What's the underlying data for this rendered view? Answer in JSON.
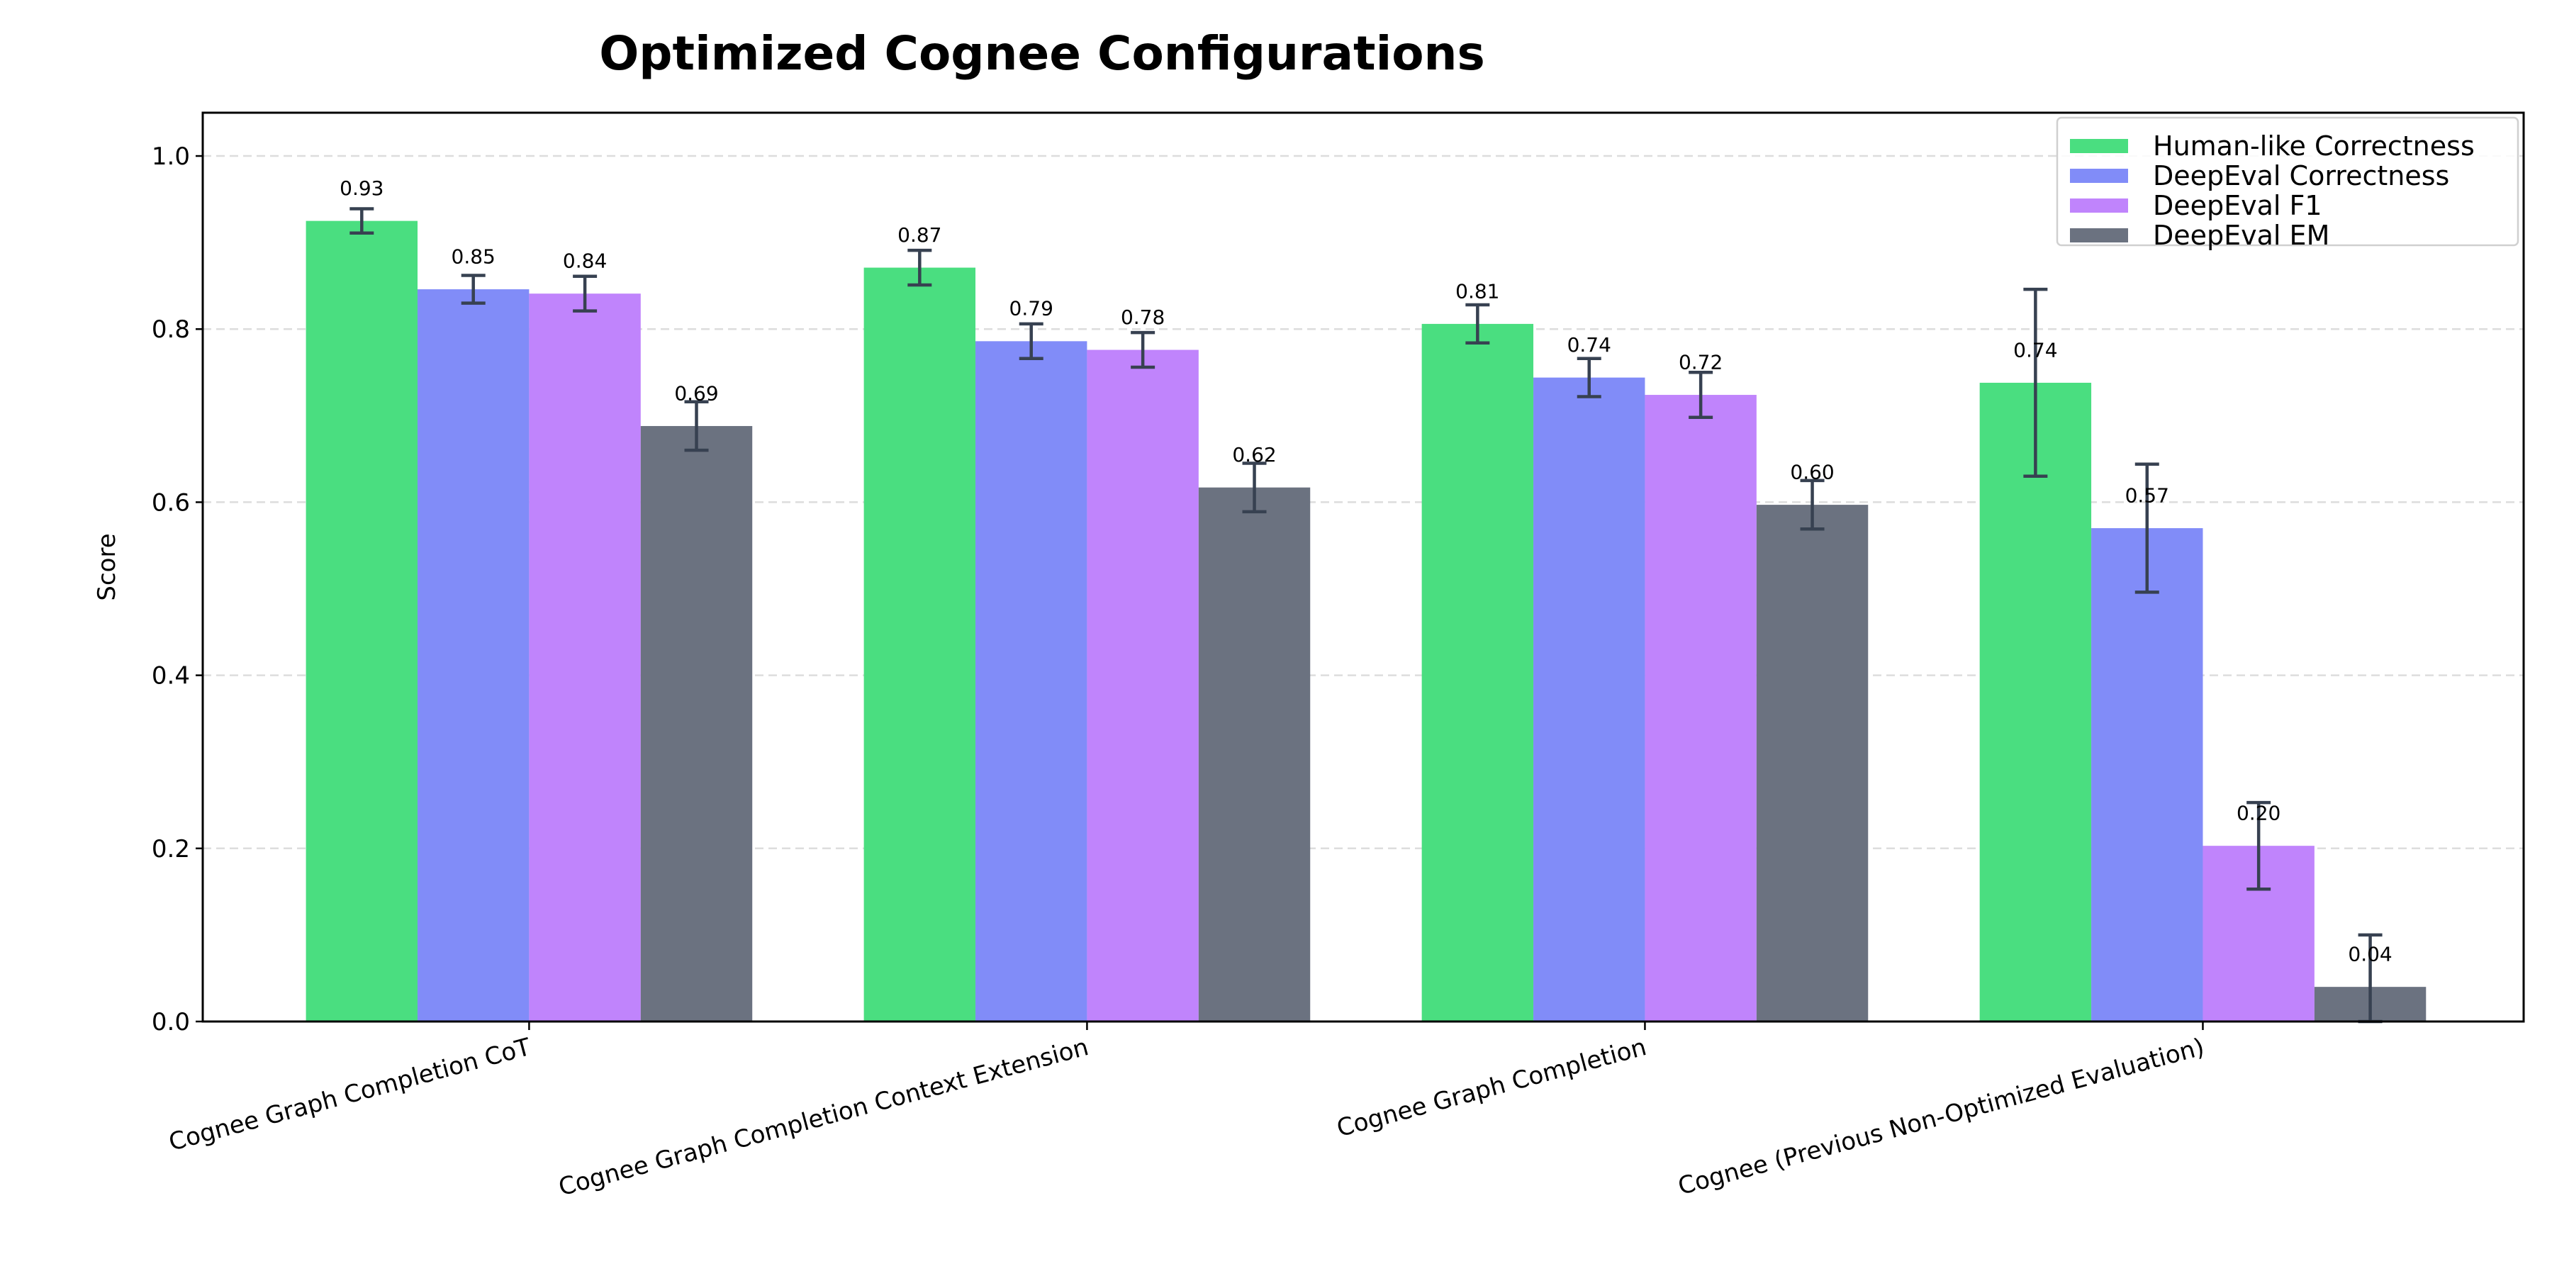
{
  "chart_data": {
    "type": "bar",
    "title": "Optimized Cognee Configurations",
    "xlabel": "",
    "ylabel": "Score",
    "ylim": [
      0,
      1.05
    ],
    "yticks": [
      "0.0",
      "0.2",
      "0.4",
      "0.6",
      "0.8",
      "1.0"
    ],
    "grid": "y-dashed",
    "legend_position": "top-right",
    "categories": [
      "Cognee Graph Completion CoT",
      "Cognee Graph Completion Context Extension",
      "Cognee Graph Completion",
      "Cognee (Previous Non-Optimized Evaluation)"
    ],
    "series": [
      {
        "name": "Human-like Correctness",
        "color": "#4ade80",
        "values": [
          0.925,
          0.871,
          0.806,
          0.738
        ],
        "errors": [
          0.014,
          0.02,
          0.022,
          0.108
        ],
        "labels": [
          "0.93",
          "0.87",
          "0.81",
          "0.74"
        ]
      },
      {
        "name": "DeepEval Correctness",
        "color": "#818cf8",
        "values": [
          0.846,
          0.786,
          0.744,
          0.57
        ],
        "errors": [
          0.016,
          0.02,
          0.022,
          0.074
        ],
        "labels": [
          "0.85",
          "0.79",
          "0.74",
          "0.57"
        ]
      },
      {
        "name": "DeepEval F1",
        "color": "#c084fc",
        "values": [
          0.841,
          0.776,
          0.724,
          0.203
        ],
        "errors": [
          0.02,
          0.02,
          0.026,
          0.05
        ],
        "labels": [
          "0.84",
          "0.78",
          "0.72",
          "0.20"
        ]
      },
      {
        "name": "DeepEval EM",
        "color": "#6b7280",
        "values": [
          0.688,
          0.617,
          0.597,
          0.04
        ],
        "errors": [
          0.028,
          0.028,
          0.028,
          0.06
        ],
        "labels": [
          "0.69",
          "0.62",
          "0.60",
          "0.04"
        ]
      }
    ],
    "error_bar_color": "#374151"
  }
}
